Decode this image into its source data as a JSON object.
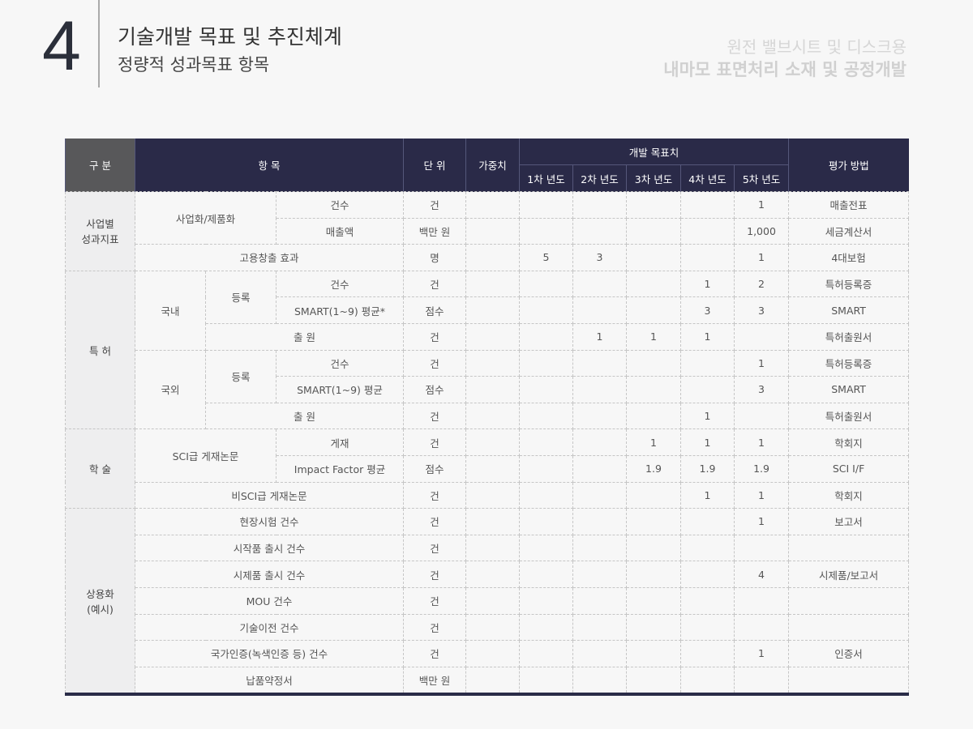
{
  "header": {
    "number": "4",
    "title": "기술개발 목표 및 추진체계",
    "subtitle": "정량적 성과목표 항목",
    "project_line1": "원전 밸브시트 및 디스크용",
    "project_line2": "내마모 표면처리 소재 및 공정개발"
  },
  "table": {
    "headers": {
      "category": "구 분",
      "item": "항 목",
      "unit": "단 위",
      "weight": "가중치",
      "targets": "개발 목표치",
      "years": [
        "1차 년도",
        "2차 년도",
        "3차 년도",
        "4차 년도",
        "5차 년도"
      ],
      "method": "평가 방법"
    },
    "rows": [
      {
        "labels": [
          "사업별\n성과지표",
          "사업화/제품화",
          "건수"
        ],
        "unit": "건",
        "weight": "",
        "targets": [
          "",
          "",
          "",
          "",
          "1"
        ],
        "method": "매출전표"
      },
      {
        "labels": [
          "매출액"
        ],
        "unit": "백만 원",
        "weight": "",
        "targets": [
          "",
          "",
          "",
          "",
          "1,000"
        ],
        "method": "세금계산서"
      },
      {
        "labels": [
          "고용창출 효과"
        ],
        "unit": "명",
        "weight": "",
        "targets": [
          "5",
          "3",
          "",
          "",
          "1"
        ],
        "method": "4대보험"
      },
      {
        "labels": [
          "특 허",
          "국내",
          "등록",
          "건수"
        ],
        "unit": "건",
        "weight": "",
        "targets": [
          "",
          "",
          "",
          "1",
          "2"
        ],
        "method": "특허등록증"
      },
      {
        "labels": [
          "SMART(1~9) 평균*"
        ],
        "unit": "점수",
        "weight": "",
        "targets": [
          "",
          "",
          "",
          "3",
          "3"
        ],
        "method": "SMART"
      },
      {
        "labels": [
          "출 원"
        ],
        "unit": "건",
        "weight": "",
        "targets": [
          "",
          "1",
          "1",
          "1",
          ""
        ],
        "method": "특허출원서"
      },
      {
        "labels": [
          "국외",
          "등록",
          "건수"
        ],
        "unit": "건",
        "weight": "",
        "targets": [
          "",
          "",
          "",
          "",
          "1"
        ],
        "method": "특허등록증"
      },
      {
        "labels": [
          "SMART(1~9) 평균"
        ],
        "unit": "점수",
        "weight": "",
        "targets": [
          "",
          "",
          "",
          "",
          "3"
        ],
        "method": "SMART"
      },
      {
        "labels": [
          "출 원"
        ],
        "unit": "건",
        "weight": "",
        "targets": [
          "",
          "",
          "",
          "1",
          ""
        ],
        "method": "특허출원서"
      },
      {
        "labels": [
          "학 술",
          "SCI급 게재논문",
          "게재"
        ],
        "unit": "건",
        "weight": "",
        "targets": [
          "",
          "",
          "1",
          "1",
          "1"
        ],
        "method": "학회지"
      },
      {
        "labels": [
          "Impact Factor 평균"
        ],
        "unit": "점수",
        "weight": "",
        "targets": [
          "",
          "",
          "1.9",
          "1.9",
          "1.9"
        ],
        "method": "SCI I/F"
      },
      {
        "labels": [
          "비SCI급 게재논문"
        ],
        "unit": "건",
        "weight": "",
        "targets": [
          "",
          "",
          "",
          "1",
          "1"
        ],
        "method": "학회지"
      },
      {
        "labels": [
          "상용화\n(예시)",
          "현장시험 건수"
        ],
        "unit": "건",
        "weight": "",
        "targets": [
          "",
          "",
          "",
          "",
          "1"
        ],
        "method": "보고서"
      },
      {
        "labels": [
          "시작품 출시 건수"
        ],
        "unit": "건",
        "weight": "",
        "targets": [
          "",
          "",
          "",
          "",
          ""
        ],
        "method": ""
      },
      {
        "labels": [
          "시제품 출시 건수"
        ],
        "unit": "건",
        "weight": "",
        "targets": [
          "",
          "",
          "",
          "",
          "4"
        ],
        "method": "시제품/보고서"
      },
      {
        "labels": [
          "MOU 건수"
        ],
        "unit": "건",
        "weight": "",
        "targets": [
          "",
          "",
          "",
          "",
          ""
        ],
        "method": ""
      },
      {
        "labels": [
          "기술이전 건수"
        ],
        "unit": "건",
        "weight": "",
        "targets": [
          "",
          "",
          "",
          "",
          ""
        ],
        "method": ""
      },
      {
        "labels": [
          "국가인증(녹색인증 등) 건수"
        ],
        "unit": "건",
        "weight": "",
        "targets": [
          "",
          "",
          "",
          "",
          "1"
        ],
        "method": "인증서"
      },
      {
        "labels": [
          "납품약정서"
        ],
        "unit": "백만 원",
        "weight": "",
        "targets": [
          "",
          "",
          "",
          "",
          ""
        ],
        "method": ""
      }
    ]
  }
}
